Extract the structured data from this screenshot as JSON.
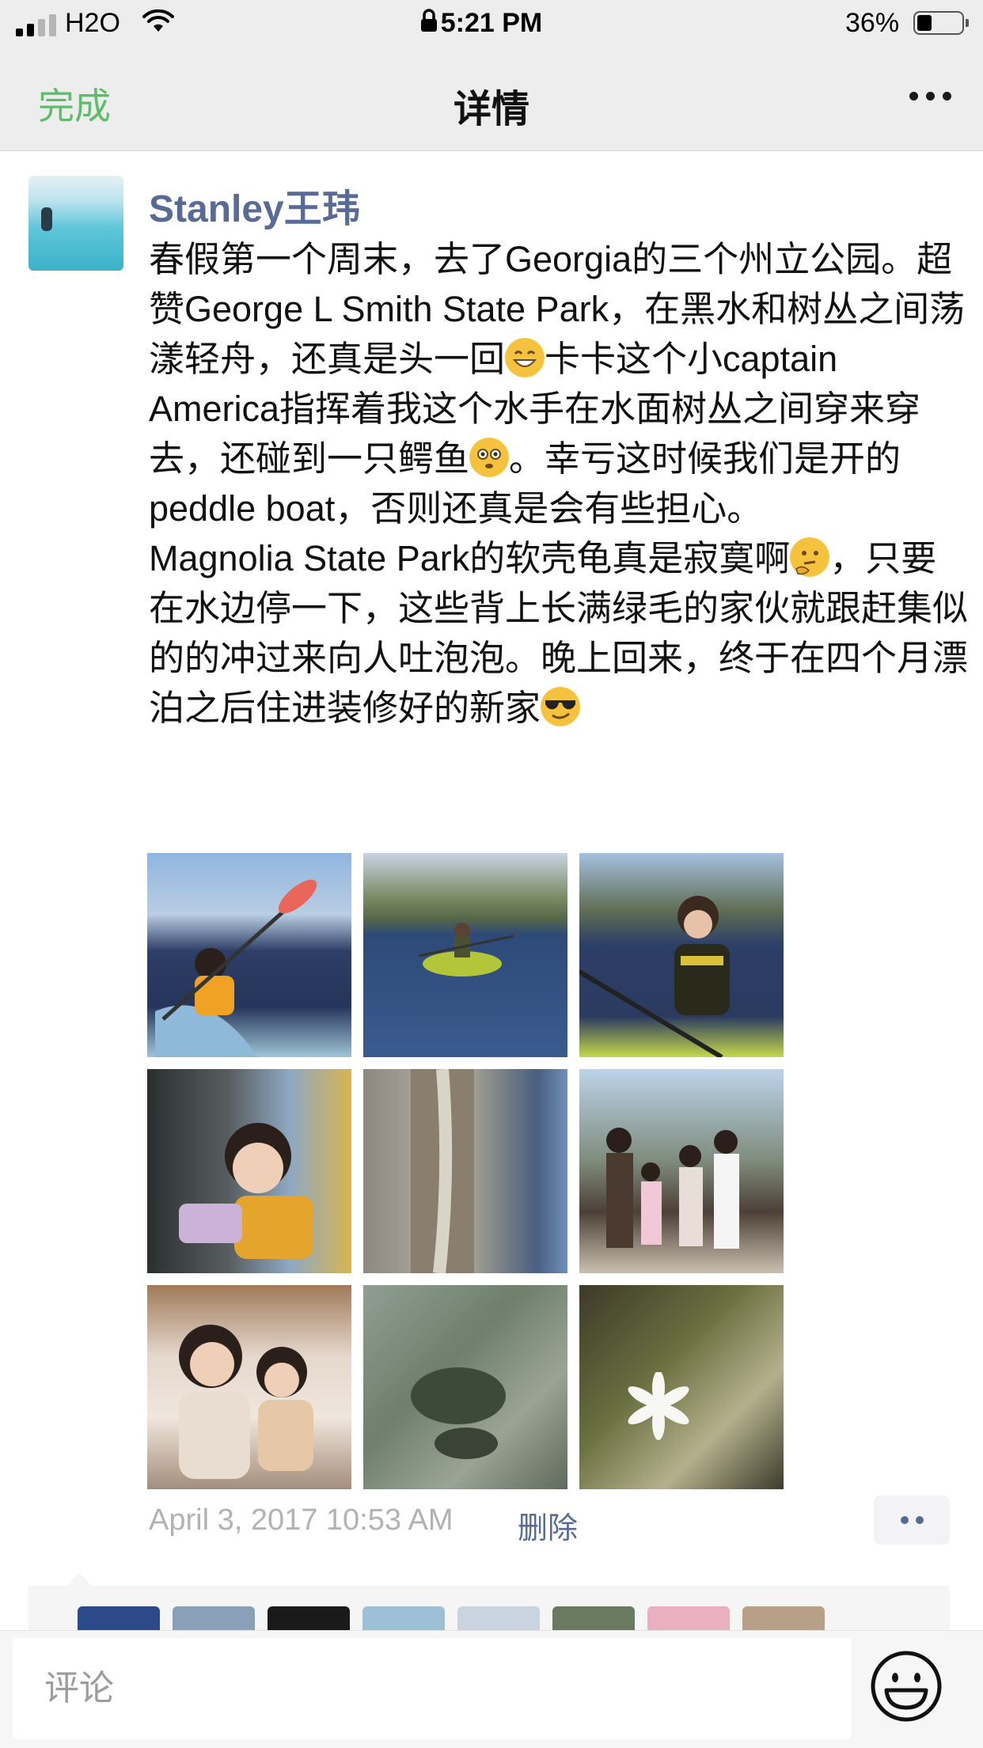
{
  "status_bar": {
    "carrier": "H2O",
    "time": "5:21 PM",
    "battery": "36%",
    "battery_level": 0.36
  },
  "nav": {
    "done": "完成",
    "title": "详情"
  },
  "post": {
    "author": "Stanley王玮",
    "text_parts": [
      "春假第一个周末，去了Georgia的三个州立公园。超赞George L Smith State Park，在黑水和树丛之间荡漾轻舟，还真是头一回",
      "卡卡这个小captain America指挥着我这个水手在水面树丛之间穿来穿去，还碰到一只鳄鱼",
      "。幸亏这时候我们是开的peddle boat，否则还真是会有些担心。\nMagnolia State Park的软壳龟真是寂寞啊",
      "，只要在水边停一下，这些背上长满绿毛的家伙就跟赶集似的的冲过来向人吐泡泡。晚上回来，终于在四个月漂泊之后住进装修好的新家"
    ],
    "emojis": [
      "grinning-emoji",
      "flushed-emoji",
      "thinking-emoji",
      "sunglasses-emoji"
    ],
    "timestamp": "April 3, 2017 10:53 AM",
    "delete_label": "删除",
    "photos": [
      "photo-1",
      "photo-2",
      "photo-3",
      "photo-4",
      "photo-5",
      "photo-6",
      "photo-7",
      "photo-8",
      "photo-9"
    ]
  },
  "comment_input": {
    "placeholder": "评论",
    "value": ""
  },
  "colors": {
    "accent_green": "#5cbd6b",
    "link_blue": "#576b95",
    "timestamp_gray": "#b2b2b2",
    "bar_gray": "#ededed"
  }
}
